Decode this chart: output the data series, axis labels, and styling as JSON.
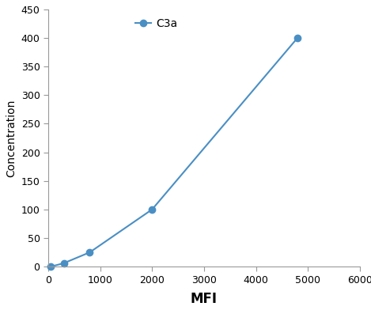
{
  "x": [
    50,
    300,
    800,
    2000,
    4800
  ],
  "y": [
    0,
    6,
    25,
    100,
    400
  ],
  "line_color": "#4a8fc4",
  "marker": "o",
  "marker_size": 6,
  "marker_facecolor": "#4a8fc4",
  "label": "C3a",
  "xlabel": "MFI",
  "ylabel": "Concentration",
  "xlim": [
    0,
    6000
  ],
  "ylim": [
    0,
    450
  ],
  "xticks": [
    0,
    1000,
    2000,
    3000,
    4000,
    5000,
    6000
  ],
  "yticks": [
    0,
    50,
    100,
    150,
    200,
    250,
    300,
    350,
    400,
    450
  ],
  "xlabel_fontsize": 12,
  "ylabel_fontsize": 10,
  "tick_fontsize": 9,
  "legend_fontsize": 10,
  "background_color": "#ffffff",
  "spine_color": "#999999",
  "grid": false
}
